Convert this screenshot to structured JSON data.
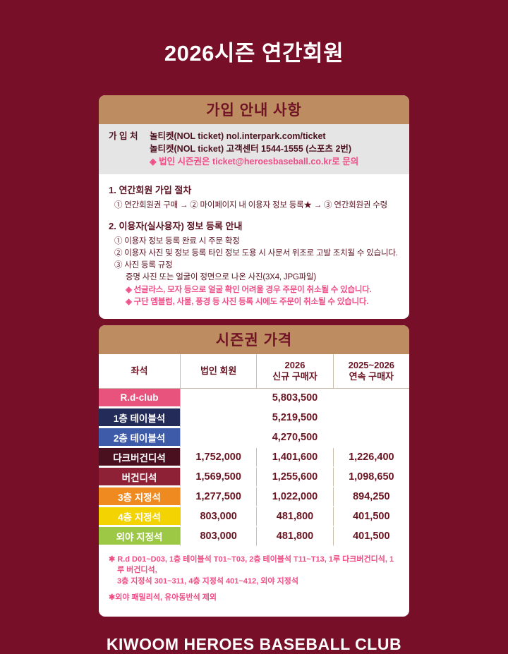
{
  "page": {
    "title": "2026시즌 연간회원",
    "footer": "KIWOOM HEROES BASEBALL CLUB"
  },
  "colors": {
    "background_maroon": "#760f27",
    "banner_tan": "#bd8c61",
    "banner_text": "#701425",
    "body_text": "#5c1322",
    "accent_pink": "#ee4d86",
    "price_text": "#6b1421",
    "grid_line": "#cdbba9",
    "contact_bg": "#e6e5e5"
  },
  "signup_card": {
    "banner_title": "가입 안내 사항",
    "contact": {
      "label": "가 입 처",
      "line1": "놀티켓(NOL ticket) nol.interpark.com/ticket",
      "line2": "놀티켓(NOL ticket) 고객센터 1544-1555 (스포츠 2번)",
      "note": "◈ 법인 시즌권은 ticket@heroesbaseball.co.kr로 문의"
    },
    "sections": [
      {
        "heading": "1. 연간회원 가입 절차",
        "lines": [
          {
            "text": "① 연간회원권 구매 → ② 마이페이지 내 이용자 정보 등록★ → ③ 연간회원권 수령",
            "style": "normal"
          }
        ]
      },
      {
        "heading": "2. 이용자(실사용자) 정보 등록 안내",
        "lines": [
          {
            "text": "① 이용자 정보 등록 완료 시 주문 확정",
            "style": "normal"
          },
          {
            "text": "② 이용자 사진 및 정보 등록 타인 정보 도용 시 사문서 위조로 고발 조치될 수 있습니다.",
            "style": "normal"
          },
          {
            "text": "③ 사진 등록 규정",
            "style": "normal"
          },
          {
            "text": "증명 사진 또는 얼굴이 정면으로 나온 사진(3X4, JPG파일)",
            "style": "indent"
          },
          {
            "text": "◈ 선글라스, 모자 등으로 얼굴 확인 어려울 경우 주문이 취소될 수 있습니다.",
            "style": "indent pink"
          },
          {
            "text": "◈ 구단 엠블럼, 사물, 풍경 등 사진 등록 시에도 주문이 취소될 수 있습니다.",
            "style": "indent pink"
          }
        ]
      }
    ]
  },
  "price_card": {
    "banner_title": "시즌권 가격",
    "chart_data": {
      "type": "table",
      "title": "시즌권 가격",
      "columns": [
        {
          "lines": [
            "좌석"
          ]
        },
        {
          "lines": [
            "법인 회원"
          ]
        },
        {
          "lines": [
            "2026",
            "신규 구매자"
          ]
        },
        {
          "lines": [
            "2025~2026",
            "연속 구매자"
          ]
        }
      ],
      "rows": [
        {
          "seat": "R.d-club",
          "color": "#e8537d",
          "merged": true,
          "prices": [
            "5,803,500"
          ]
        },
        {
          "seat": "1층 테이블석",
          "color": "#232b59",
          "merged": true,
          "prices": [
            "5,219,500"
          ]
        },
        {
          "seat": "2층 테이블석",
          "color": "#3d5ba9",
          "merged": true,
          "prices": [
            "4,270,500"
          ]
        },
        {
          "seat": "다크버건디석",
          "color": "#4a1020",
          "merged": false,
          "prices": [
            "1,752,000",
            "1,401,600",
            "1,226,400"
          ]
        },
        {
          "seat": "버건디석",
          "color": "#8e2135",
          "merged": false,
          "prices": [
            "1,569,500",
            "1,255,600",
            "1,098,650"
          ]
        },
        {
          "seat": "3층 지정석",
          "color": "#ee8a1f",
          "merged": false,
          "prices": [
            "1,277,500",
            "1,022,000",
            "894,250"
          ]
        },
        {
          "seat": "4층 지정석",
          "color": "#f3d301",
          "merged": false,
          "prices": [
            "803,000",
            "481,800",
            "401,500"
          ]
        },
        {
          "seat": "외야 지정석",
          "color": "#9cc845",
          "merged": false,
          "prices": [
            "803,000",
            "481,800",
            "401,500"
          ]
        }
      ]
    },
    "footnotes": [
      "✱ R.d  D01~D03, 1층 테이블석 T01~T03, 2층 테이블석 T11~T13, 1루 다크버건디석, 1루 버건디석,\n3층 지정석 301~311, 4층 지정석 401~412, 외야 지정석",
      "✱외야 패밀리석, 유아동반석 제외"
    ]
  }
}
